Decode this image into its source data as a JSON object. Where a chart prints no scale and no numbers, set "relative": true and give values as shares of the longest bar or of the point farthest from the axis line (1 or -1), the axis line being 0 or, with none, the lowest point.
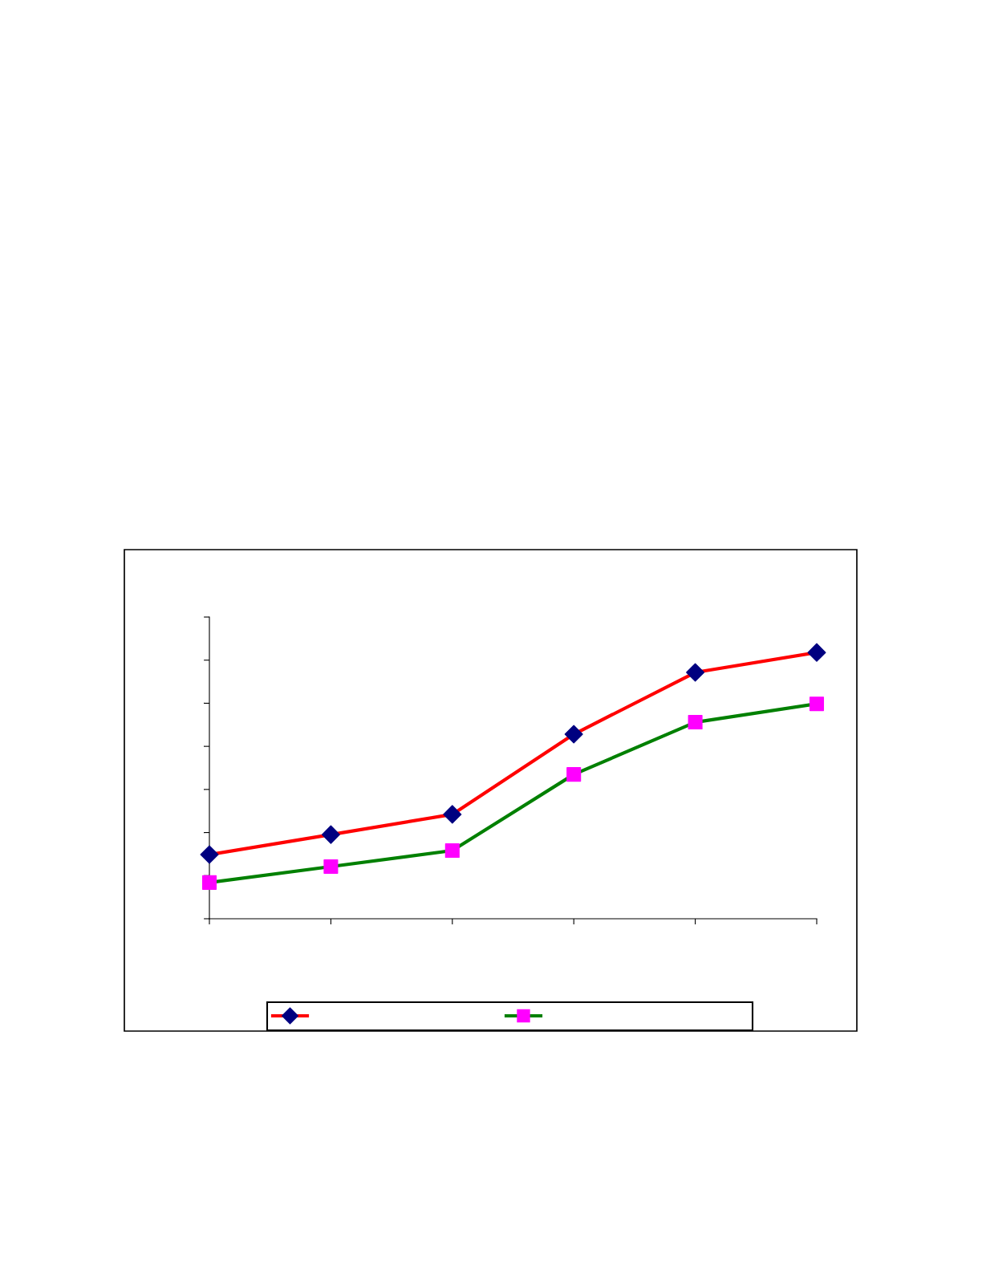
{
  "chart_data": {
    "type": "line",
    "relative": true,
    "categories": [
      null,
      null,
      null,
      null,
      null,
      null
    ],
    "series": [
      {
        "color": "#ff0000",
        "marker": "diamond",
        "colors": [
          "#000080",
          "#000080",
          "#000080",
          "#000080",
          "#000080",
          "#000080"
        ],
        "values": [
          0.241,
          0.316,
          0.392,
          0.693,
          0.925,
          1
        ]
      },
      {
        "color": "#008000",
        "marker": "square",
        "colors": [
          "#ff00ff",
          "#ff00ff",
          "#ff00ff",
          "#ff00ff",
          "#ff00ff",
          "#ff00ff"
        ],
        "values": [
          0.136,
          0.196,
          0.256,
          0.542,
          0.738,
          0.807
        ]
      }
    ],
    "grid": false,
    "line_style": "solid"
  }
}
